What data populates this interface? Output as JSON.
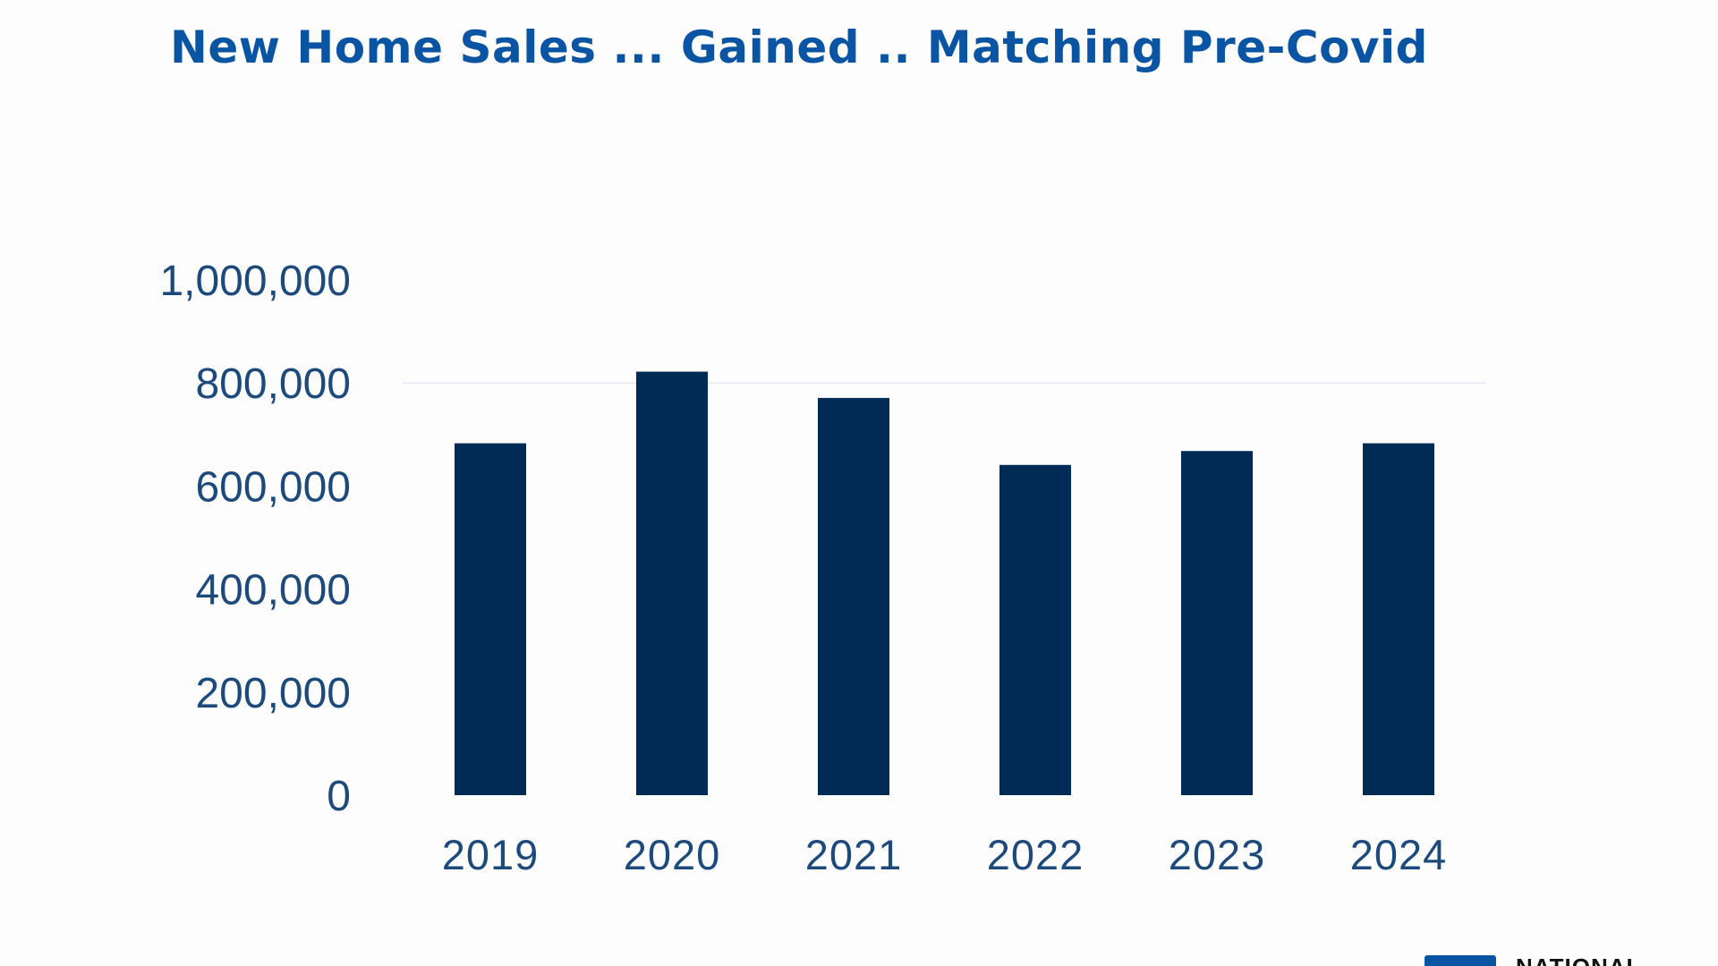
{
  "colors": {
    "background": "#fdfdfd",
    "title": "#0a54a4",
    "bar": "#002b54",
    "tick": "#1d4a7c",
    "category": "#1d4a7c",
    "gridline": "#e8ecf1",
    "logo_mark": "#0a54a4"
  },
  "chart_data": {
    "type": "bar",
    "title": "New Home Sales ... Gained .. Matching Pre-Covid",
    "xlabel": "",
    "ylabel": "",
    "categories": [
      "2019",
      "2020",
      "2021",
      "2022",
      "2023",
      "2024"
    ],
    "values": [
      683000,
      822000,
      771000,
      641000,
      668000,
      683000
    ],
    "ylim": [
      0,
      1000000
    ],
    "yticks": [
      0,
      200000,
      400000,
      600000,
      800000,
      1000000
    ],
    "ytick_labels": [
      "0",
      "200,000",
      "400,000",
      "600,000",
      "800,000",
      "1,000,000"
    ],
    "grid": false,
    "legend": "none"
  },
  "logo": {
    "text": "NATIONAL",
    "icon": "logo-mark-icon"
  }
}
